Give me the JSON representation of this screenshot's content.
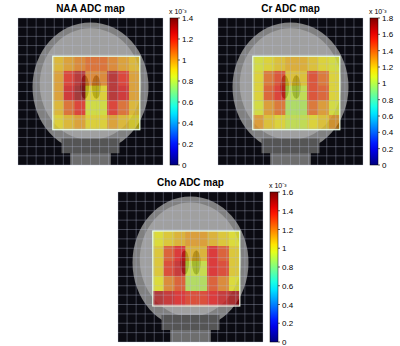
{
  "chart_data": [
    {
      "type": "heatmap",
      "title": "NAA ADC map",
      "tick_labels": false,
      "cells": [
        [
          0.95,
          1.0,
          1.05,
          1.1,
          1.1,
          1.05,
          1.0,
          0.95
        ],
        [
          1.0,
          1.2,
          1.3,
          1.05,
          1.05,
          1.3,
          1.2,
          1.0
        ],
        [
          1.0,
          1.25,
          1.35,
          0.9,
          0.9,
          1.3,
          1.25,
          1.0
        ],
        [
          0.95,
          1.1,
          1.2,
          0.85,
          0.85,
          1.2,
          1.1,
          0.95
        ],
        [
          0.9,
          0.95,
          1.0,
          0.9,
          0.9,
          1.0,
          0.95,
          0.9
        ]
      ],
      "colorbar_range": [
        0,
        1.4
      ],
      "colorbar_ticks": [
        0,
        0.2,
        0.4,
        0.6,
        0.8,
        1,
        1.2,
        1.4
      ],
      "colorbar_label": "x 10⁻³"
    },
    {
      "type": "heatmap",
      "title": "Cr ADC map",
      "tick_labels": false,
      "cells": [
        [
          1.1,
          1.15,
          1.2,
          1.25,
          1.25,
          1.2,
          1.15,
          1.1
        ],
        [
          1.15,
          1.4,
          1.5,
          1.2,
          1.2,
          1.5,
          1.4,
          1.15
        ],
        [
          1.15,
          1.45,
          1.55,
          1.05,
          1.05,
          1.5,
          1.45,
          1.15
        ],
        [
          1.1,
          1.3,
          1.4,
          1.0,
          1.0,
          1.4,
          1.3,
          1.1
        ],
        [
          1.3,
          1.2,
          1.15,
          1.05,
          1.05,
          1.15,
          1.2,
          1.3
        ]
      ],
      "colorbar_range": [
        0,
        1.8
      ],
      "colorbar_ticks": [
        0,
        0.2,
        0.4,
        0.6,
        0.8,
        1,
        1.2,
        1.4,
        1.6,
        1.8
      ],
      "colorbar_label": "x 10⁻³"
    },
    {
      "type": "heatmap",
      "title": "Cho ADC map",
      "tick_labels": false,
      "cells": [
        [
          1.0,
          1.05,
          1.1,
          1.15,
          1.15,
          1.1,
          1.05,
          1.0
        ],
        [
          1.05,
          1.3,
          1.4,
          1.1,
          1.1,
          1.4,
          1.3,
          1.05
        ],
        [
          1.05,
          1.35,
          1.45,
          0.95,
          0.95,
          1.4,
          1.35,
          1.05
        ],
        [
          1.0,
          1.2,
          1.3,
          0.9,
          0.9,
          1.3,
          1.2,
          1.0
        ],
        [
          1.5,
          1.45,
          1.4,
          1.35,
          1.35,
          1.4,
          1.45,
          1.5
        ]
      ],
      "colorbar_range": [
        0,
        1.6
      ],
      "colorbar_ticks": [
        0,
        0.2,
        0.4,
        0.6,
        0.8,
        1,
        1.2,
        1.4,
        1.6
      ],
      "colorbar_label": "x 10⁻³"
    }
  ]
}
